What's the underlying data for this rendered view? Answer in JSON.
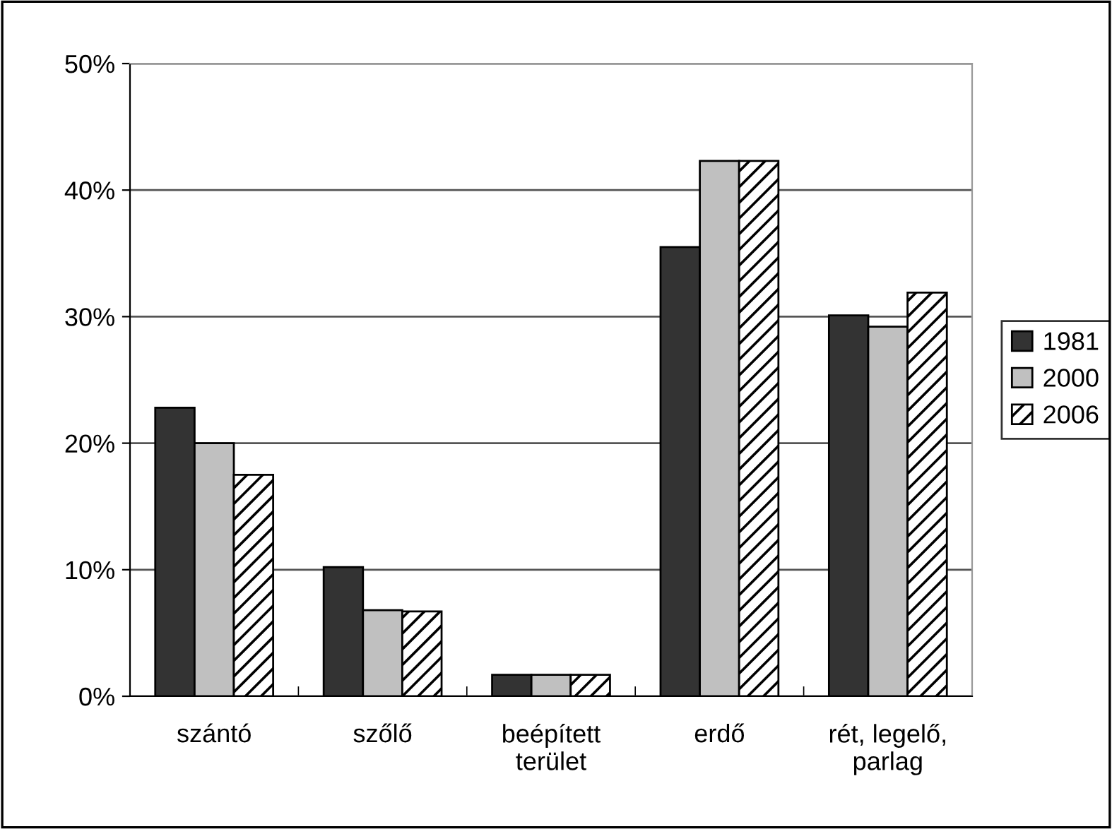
{
  "chart_data": {
    "type": "bar",
    "categories": [
      "szántó",
      "szőlő",
      "beépített\nterület",
      "erdő",
      "rét, legelő,\nparlag"
    ],
    "series": [
      {
        "name": "1981",
        "color": "#333333",
        "values": [
          22.8,
          10.2,
          1.7,
          35.5,
          30.1
        ]
      },
      {
        "name": "2000",
        "color": "#c0c0c0",
        "values": [
          20.0,
          6.8,
          1.7,
          42.3,
          29.2
        ]
      },
      {
        "name": "2006",
        "color": "#000000",
        "values": [
          17.5,
          6.7,
          1.7,
          42.3,
          31.9
        ]
      }
    ],
    "ylim": [
      0,
      50
    ],
    "yticks": [
      {
        "value": 0,
        "label": "0%"
      },
      {
        "value": 10,
        "label": "10%"
      },
      {
        "value": 20,
        "label": "20%"
      },
      {
        "value": 30,
        "label": "30%"
      },
      {
        "value": 40,
        "label": "40%"
      },
      {
        "value": 50,
        "label": "50%"
      }
    ],
    "grid": "y",
    "legend": "right"
  }
}
